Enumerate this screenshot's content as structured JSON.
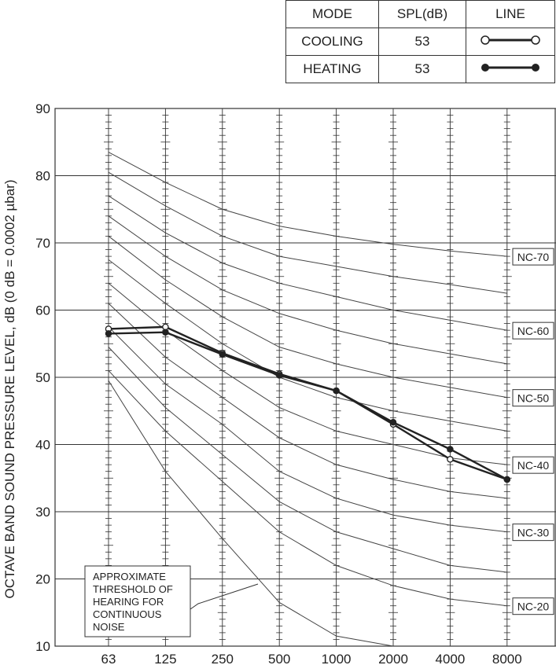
{
  "legend": {
    "headers": [
      "MODE",
      "SPL(dB)",
      "LINE"
    ],
    "rows": [
      {
        "mode": "COOLING",
        "spl": "53",
        "marker": "open-circle"
      },
      {
        "mode": "HEATING",
        "spl": "53",
        "marker": "filled-circle"
      }
    ]
  },
  "chart_data": {
    "type": "line",
    "title": "",
    "ylabel": "OCTAVE BAND SOUND PRESSURE LEVEL, dB (0 dB = 0.0002 µbar)",
    "xlabel": "",
    "categories": [
      "63",
      "125",
      "250",
      "500",
      "1000",
      "2000",
      "4000",
      "8000"
    ],
    "ylim": [
      10,
      90
    ],
    "yticks": [
      10,
      20,
      30,
      40,
      50,
      60,
      70,
      80,
      90
    ],
    "grid": true,
    "series": [
      {
        "name": "COOLING",
        "marker": "open",
        "values": [
          57.2,
          57.5,
          53.6,
          50.5,
          48.0,
          43.0,
          37.8,
          34.8
        ]
      },
      {
        "name": "HEATING",
        "marker": "filled",
        "values": [
          56.5,
          56.7,
          53.4,
          50.3,
          48.0,
          43.3,
          39.3,
          34.8
        ]
      }
    ],
    "nc_curves": [
      {
        "label": "NC-70",
        "values": [
          83.5,
          79.0,
          75.0,
          72.5,
          71.0,
          69.8,
          68.8,
          68.0
        ]
      },
      {
        "label": "",
        "values": [
          80.5,
          75.5,
          71.0,
          68.0,
          66.5,
          65.0,
          63.8,
          62.5
        ]
      },
      {
        "label": "NC-60",
        "values": [
          77.0,
          71.5,
          67.0,
          64.0,
          62.0,
          60.0,
          58.5,
          57.0
        ]
      },
      {
        "label": "",
        "values": [
          74.0,
          68.0,
          63.0,
          59.5,
          57.0,
          55.0,
          53.5,
          52.0
        ]
      },
      {
        "label": "NC-50",
        "values": [
          71.0,
          64.5,
          59.0,
          54.5,
          52.0,
          50.0,
          48.5,
          47.0
        ]
      },
      {
        "label": "",
        "values": [
          67.5,
          61.0,
          55.0,
          50.0,
          47.0,
          45.0,
          43.5,
          42.0
        ]
      },
      {
        "label": "NC-40",
        "values": [
          64.0,
          57.0,
          51.0,
          45.5,
          42.0,
          40.0,
          38.0,
          37.0
        ]
      },
      {
        "label": "",
        "values": [
          61.0,
          53.0,
          47.0,
          41.0,
          37.0,
          34.8,
          33.0,
          32.0
        ]
      },
      {
        "label": "NC-30",
        "values": [
          57.5,
          49.0,
          43.0,
          36.0,
          32.0,
          29.5,
          28.0,
          27.0
        ]
      },
      {
        "label": "",
        "values": [
          54.5,
          45.5,
          38.5,
          31.5,
          27.0,
          24.5,
          22.0,
          21.0
        ]
      },
      {
        "label": "NC-20",
        "values": [
          51.0,
          42.0,
          34.5,
          27.0,
          22.0,
          19.0,
          17.0,
          16.0
        ]
      }
    ],
    "threshold_curve": {
      "x_index": [
        0,
        1,
        2,
        3,
        4,
        5
      ],
      "values": [
        49.5,
        36.0,
        26.0,
        16.5,
        11.5,
        10.0
      ]
    },
    "annotation": "APPROXIMATE THRESHOLD OF HEARING FOR CONTINUOUS NOISE"
  }
}
